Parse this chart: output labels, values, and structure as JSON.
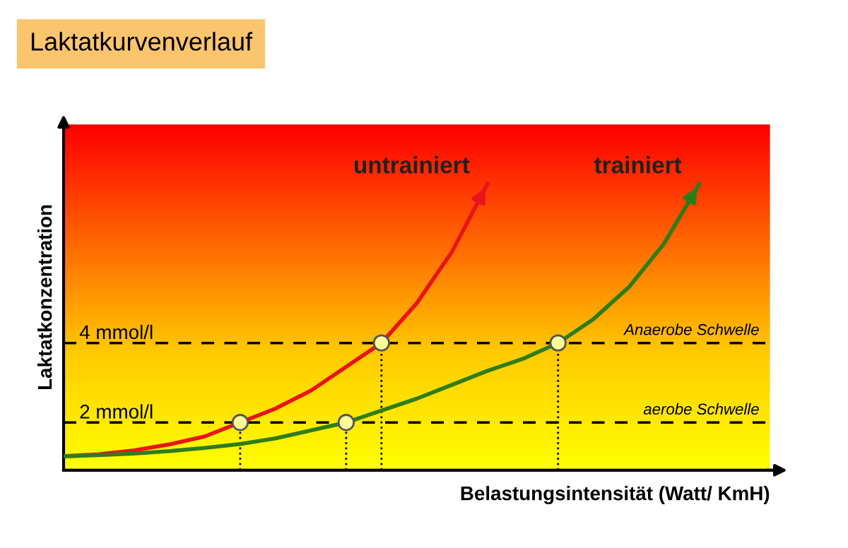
{
  "chart_data": {
    "type": "line",
    "title": "Laktatkurvenverlauf",
    "xlabel": "Belastungsintensität (Watt/ KmH)",
    "ylabel": "Laktatkonzentration",
    "categories": [
      null,
      null,
      null,
      null,
      null,
      null,
      null,
      null,
      null,
      null,
      null,
      null,
      null,
      null,
      null,
      null,
      null,
      null,
      null,
      null,
      null
    ],
    "series": [
      {
        "name": "untrainiert",
        "color": "#e8141c",
        "values": [
          1.15,
          1.2,
          1.3,
          1.45,
          1.65,
          2.0,
          2.35,
          2.8,
          3.4,
          4.0,
          5.0,
          6.3,
          8.0,
          null,
          null,
          null,
          null,
          null,
          null,
          null,
          null
        ]
      },
      {
        "name": "trainiert",
        "color": "#2e7d1a",
        "values": [
          1.15,
          1.18,
          1.22,
          1.28,
          1.36,
          1.46,
          1.6,
          1.8,
          2.0,
          2.3,
          2.6,
          2.95,
          3.3,
          3.6,
          4.0,
          4.6,
          5.4,
          6.5,
          8.0,
          null,
          null
        ]
      },
      {
        "type": "scatter",
        "color": "#ffff99",
        "marker": "circle",
        "values": [
          null,
          null,
          null,
          null,
          null,
          2.0,
          null,
          null,
          2.0,
          4.0,
          null,
          null,
          null,
          null,
          4.0,
          null,
          null,
          null,
          null,
          null,
          null
        ]
      }
    ],
    "ylim": [
      0.8,
      9.5
    ],
    "yticks": [
      {
        "value": 2,
        "label": "2 mmol/l"
      },
      {
        "value": 4,
        "label": "4 mmol/l"
      }
    ],
    "ref_lines": [
      {
        "axis": "y",
        "value": 4,
        "label": "Anaerobe Schwelle",
        "color": "#000000",
        "line_style": "dashed"
      },
      {
        "axis": "y",
        "value": 2,
        "label": "aerobe Schwelle",
        "color": "#000000",
        "line_style": "dashed"
      }
    ],
    "grid": false,
    "legend": false
  }
}
